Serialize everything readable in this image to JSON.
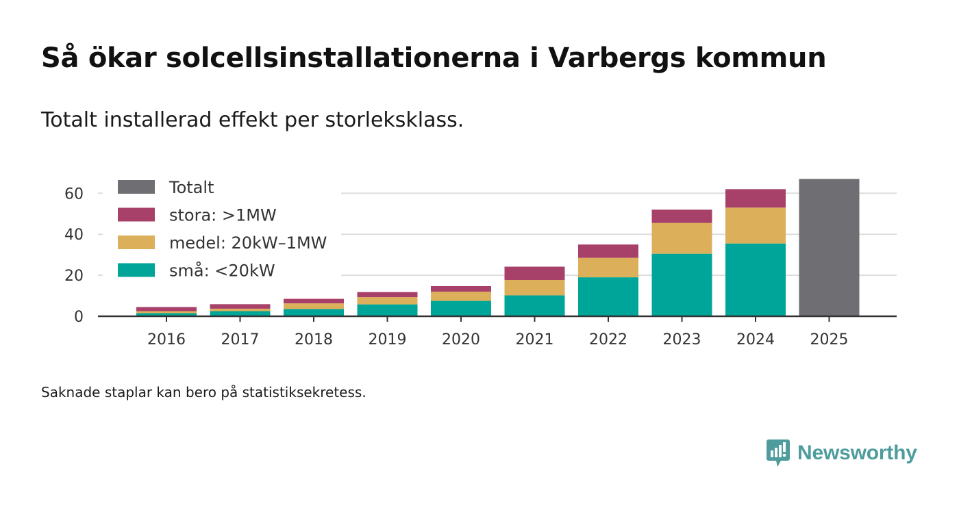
{
  "header": {
    "title": "Så ökar solcellsinstallationerna i Varbergs kommun",
    "subtitle": "Totalt installerad effekt per storleksklass."
  },
  "footer": {
    "note": "Saknade staplar kan bero på statistiksekretess.",
    "brand": "Newsworthy"
  },
  "colors": {
    "sma": "#00a59a",
    "medel": "#dcaf5a",
    "stora": "#a8416a",
    "totalt": "#6e6e73",
    "brand": "#4e9c9c"
  },
  "chart_data": {
    "type": "bar",
    "stacked": true,
    "title": "Så ökar solcellsinstallationerna i Varbergs kommun",
    "subtitle": "Totalt installerad effekt per storleksklass.",
    "xlabel": "",
    "ylabel": "",
    "ylim": [
      0,
      70
    ],
    "yticks": [
      0,
      20,
      40,
      60
    ],
    "grid": true,
    "legend_position": "top-left",
    "legend": [
      "Totalt",
      "stora: >1MW",
      "medel: 20kW–1MW",
      "små: <20kW"
    ],
    "categories": [
      "2016",
      "2017",
      "2018",
      "2019",
      "2020",
      "2021",
      "2022",
      "2023",
      "2024",
      "2025"
    ],
    "series": [
      {
        "name": "små: <20kW",
        "color_key": "sma",
        "values": [
          1.5,
          2.5,
          3.5,
          5.8,
          7.5,
          10.2,
          19.0,
          30.5,
          35.5,
          null
        ]
      },
      {
        "name": "medel: 20kW–1MW",
        "color_key": "medel",
        "values": [
          1.0,
          1.2,
          2.8,
          3.5,
          4.5,
          7.5,
          9.5,
          15.0,
          17.5,
          null
        ]
      },
      {
        "name": "stora: >1MW",
        "color_key": "stora",
        "values": [
          2.0,
          2.2,
          2.2,
          2.5,
          2.7,
          6.5,
          6.5,
          6.5,
          9.0,
          null
        ]
      },
      {
        "name": "Totalt",
        "color_key": "totalt",
        "values": [
          null,
          null,
          null,
          null,
          null,
          null,
          null,
          null,
          null,
          67.0
        ]
      }
    ]
  }
}
